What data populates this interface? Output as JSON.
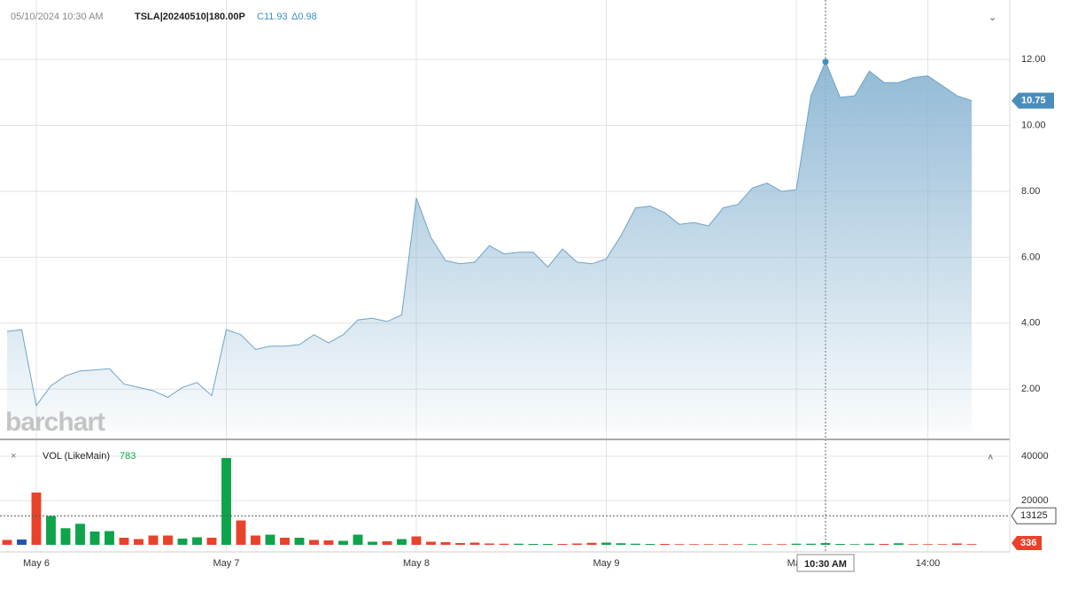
{
  "header": {
    "datetime": "05/10/2024 10:30 AM",
    "symbol": "TSLA|20240510|180.00P",
    "close": "C11.93",
    "change": "Δ0.98"
  },
  "watermark": "barchart",
  "chart_data": [
    {
      "type": "area",
      "color": "#6fa3c7",
      "categories": [
        null,
        null,
        "May 6",
        null,
        null,
        null,
        null,
        null,
        null,
        null,
        null,
        null,
        null,
        null,
        null,
        "May 7",
        null,
        null,
        null,
        null,
        null,
        null,
        null,
        null,
        null,
        null,
        null,
        null,
        "May 8",
        null,
        null,
        null,
        null,
        null,
        null,
        null,
        null,
        null,
        null,
        null,
        null,
        "May 9",
        null,
        null,
        null,
        null,
        null,
        null,
        null,
        null,
        null,
        null,
        null,
        null,
        "May",
        null,
        "10:30 AM",
        null,
        null,
        null,
        null,
        null,
        null,
        "14:00",
        null,
        null,
        null
      ],
      "marker_category": "10:30 AM",
      "values": [
        3.75,
        3.8,
        1.5,
        2.1,
        2.4,
        2.55,
        2.58,
        2.62,
        2.15,
        2.05,
        1.95,
        1.75,
        2.05,
        2.2,
        1.8,
        3.8,
        3.65,
        3.2,
        3.3,
        3.3,
        3.35,
        3.65,
        3.4,
        3.65,
        4.1,
        4.15,
        4.05,
        4.25,
        7.8,
        6.6,
        5.9,
        5.8,
        5.85,
        6.35,
        6.1,
        6.15,
        6.15,
        5.7,
        6.25,
        5.85,
        5.8,
        5.95,
        6.65,
        7.5,
        7.55,
        7.35,
        7.0,
        7.05,
        6.95,
        7.5,
        7.6,
        8.1,
        8.25,
        8.0,
        8.05,
        10.9,
        11.93,
        10.85,
        10.9,
        11.65,
        11.3,
        11.3,
        11.45,
        11.5,
        11.2,
        10.9,
        10.75
      ],
      "ylim": [
        0.5,
        13.67
      ],
      "yticks": [
        {
          "value": 2,
          "label": "2.00"
        },
        {
          "value": 4,
          "label": "4.00"
        },
        {
          "value": 6,
          "label": "6.00"
        },
        {
          "value": 8,
          "label": "8.00"
        },
        {
          "value": 10,
          "label": "10.00"
        },
        {
          "value": 12,
          "label": "12.00"
        }
      ],
      "grid": true
    },
    {
      "type": "bar",
      "title": "VOL (LikeMain)",
      "values": [
        2200,
        2400,
        23600,
        13000,
        7500,
        9500,
        6000,
        6200,
        3200,
        2600,
        4200,
        4200,
        2800,
        3400,
        3200,
        39200,
        11000,
        4200,
        4600,
        3200,
        3200,
        2200,
        2000,
        1800,
        4600,
        1400,
        1600,
        2600,
        3800,
        1400,
        1200,
        800,
        1000,
        600,
        500,
        500,
        400,
        400,
        400,
        600,
        900,
        1000,
        700,
        500,
        400,
        400,
        300,
        300,
        300,
        300,
        300,
        300,
        300,
        300,
        500,
        500,
        783,
        400,
        300,
        500,
        400,
        700,
        300,
        300,
        300,
        600,
        336
      ],
      "colors": [
        "#e8432a",
        "#2554b0",
        "#e8432a",
        "#0fa34b",
        "#0fa34b",
        "#0fa34b",
        "#0fa34b",
        "#0fa34b",
        "#e8432a",
        "#e8432a",
        "#e8432a",
        "#e8432a",
        "#0fa34b",
        "#0fa34b",
        "#e8432a",
        "#0fa34b",
        "#e8432a",
        "#e8432a",
        "#0fa34b",
        "#e8432a",
        "#0fa34b",
        "#e8432a",
        "#e8432a",
        "#0fa34b",
        "#0fa34b",
        "#0fa34b",
        "#e8432a",
        "#0fa34b",
        "#e8432a",
        "#e8432a",
        "#e8432a",
        "#e8432a",
        "#e8432a",
        "#e8432a",
        "#e8432a",
        "#0fa34b",
        "#0fa34b",
        "#0fa34b",
        "#e8432a",
        "#e8432a",
        "#e8432a",
        "#0fa34b",
        "#0fa34b",
        "#0fa34b",
        "#0fa34b",
        "#e8432a",
        "#e8432a",
        "#e8432a",
        "#e8432a",
        "#e8432a",
        "#e8432a",
        "#0fa34b",
        "#e8432a",
        "#e8432a",
        "#0fa34b",
        "#0fa34b",
        "#0fa34b",
        "#0fa34b",
        "#0fa34b",
        "#0fa34b",
        "#e8432a",
        "#0fa34b",
        "#e8432a",
        "#e8432a",
        "#e8432a",
        "#e8432a",
        "#e8432a"
      ],
      "reference_value": 13125,
      "ylim": [
        -2800,
        47200
      ],
      "yticks": [
        20000,
        40000
      ],
      "grid": true
    }
  ]
}
